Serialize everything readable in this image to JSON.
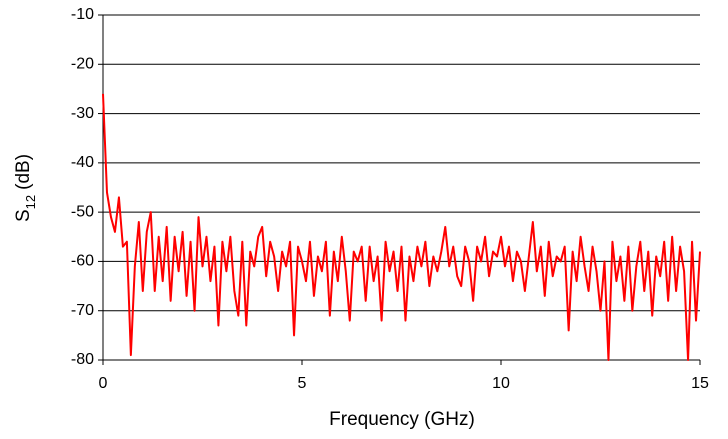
{
  "chart_data": {
    "type": "line",
    "xlabel": "Frequency (GHz)",
    "ylabel_parts": [
      "S",
      "12",
      "(dB)"
    ],
    "xlim": [
      0,
      15
    ],
    "xticks": [
      0,
      5,
      10,
      15
    ],
    "ylim": [
      -80,
      -10
    ],
    "yticks": [
      -80,
      -70,
      -60,
      -50,
      -40,
      -30,
      -20,
      -10
    ],
    "grid": true,
    "series": [
      {
        "color": "#ff0000",
        "x": [
          0,
          0.1,
          0.2,
          0.3,
          0.4,
          0.5,
          0.6,
          0.7,
          0.8,
          0.9,
          1,
          1.1,
          1.2,
          1.3,
          1.4,
          1.5,
          1.6,
          1.7,
          1.8,
          1.9,
          2,
          2.1,
          2.2,
          2.3,
          2.4,
          2.5,
          2.6,
          2.7,
          2.8,
          2.9,
          3,
          3.1,
          3.2,
          3.3,
          3.4,
          3.5,
          3.6,
          3.7,
          3.8,
          3.9,
          4,
          4.1,
          4.2,
          4.3,
          4.4,
          4.5,
          4.6,
          4.7,
          4.8,
          4.9,
          5,
          5.1,
          5.2,
          5.3,
          5.4,
          5.5,
          5.6,
          5.7,
          5.8,
          5.9,
          6,
          6.1,
          6.2,
          6.3,
          6.4,
          6.5,
          6.6,
          6.7,
          6.8,
          6.9,
          7,
          7.1,
          7.2,
          7.3,
          7.4,
          7.5,
          7.6,
          7.7,
          7.8,
          7.9,
          8,
          8.1,
          8.2,
          8.3,
          8.4,
          8.5,
          8.6,
          8.7,
          8.8,
          8.9,
          9,
          9.1,
          9.2,
          9.3,
          9.4,
          9.5,
          9.6,
          9.7,
          9.8,
          9.9,
          10,
          10.1,
          10.2,
          10.3,
          10.4,
          10.5,
          10.6,
          10.7,
          10.8,
          10.9,
          11,
          11.1,
          11.2,
          11.3,
          11.4,
          11.5,
          11.6,
          11.7,
          11.8,
          11.9,
          12,
          12.1,
          12.2,
          12.3,
          12.4,
          12.5,
          12.6,
          12.7,
          12.8,
          12.9,
          13,
          13.1,
          13.2,
          13.3,
          13.4,
          13.5,
          13.6,
          13.7,
          13.8,
          13.9,
          14,
          14.1,
          14.2,
          14.3,
          14.4,
          14.5,
          14.6,
          14.7,
          14.8,
          14.9,
          15
        ],
        "values": [
          -26,
          -46,
          -51,
          -54,
          -47,
          -57,
          -56,
          -79,
          -61,
          -52,
          -66,
          -54,
          -50,
          -66,
          -55,
          -64,
          -53,
          -68,
          -55,
          -62,
          -54,
          -67,
          -56,
          -70,
          -51,
          -61,
          -55,
          -64,
          -57,
          -73,
          -56,
          -62,
          -55,
          -66,
          -71,
          -56,
          -73,
          -58,
          -61,
          -55,
          -53,
          -63,
          -56,
          -59,
          -66,
          -58,
          -61,
          -56,
          -75,
          -57,
          -60,
          -64,
          -56,
          -67,
          -59,
          -62,
          -56,
          -71,
          -58,
          -64,
          -55,
          -62,
          -72,
          -58,
          -60,
          -57,
          -68,
          -57,
          -64,
          -59,
          -72,
          -56,
          -62,
          -58,
          -66,
          -57,
          -72,
          -59,
          -64,
          -57,
          -61,
          -56,
          -65,
          -59,
          -62,
          -58,
          -53,
          -61,
          -57,
          -63,
          -65,
          -57,
          -60,
          -68,
          -57,
          -60,
          -55,
          -63,
          -58,
          -59,
          -55,
          -61,
          -57,
          -64,
          -58,
          -60,
          -66,
          -59,
          -52,
          -62,
          -57,
          -67,
          -56,
          -63,
          -59,
          -60,
          -57,
          -74,
          -58,
          -64,
          -55,
          -61,
          -66,
          -57,
          -62,
          -70,
          -60,
          -80,
          -56,
          -64,
          -59,
          -68,
          -57,
          -70,
          -61,
          -56,
          -66,
          -58,
          -71,
          -59,
          -63,
          -56,
          -68,
          -55,
          -66,
          -57,
          -62,
          -80,
          -56,
          -72,
          -58
        ]
      }
    ]
  }
}
